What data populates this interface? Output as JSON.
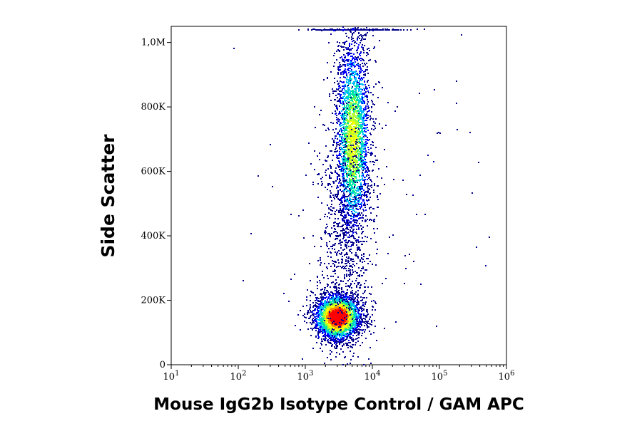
{
  "chart_data": {
    "type": "scatter",
    "title": "",
    "xlabel": "Mouse IgG2b Isotype Control / GAM APC",
    "ylabel": "Side Scatter",
    "x_scale": "log",
    "xlim": [
      10,
      1000000
    ],
    "ylim": [
      0,
      1050000
    ],
    "x_ticks": [
      {
        "value": 10,
        "base": "10",
        "exp": "1"
      },
      {
        "value": 100,
        "base": "10",
        "exp": "2"
      },
      {
        "value": 1000,
        "base": "10",
        "exp": "3"
      },
      {
        "value": 10000,
        "base": "10",
        "exp": "4"
      },
      {
        "value": 100000,
        "base": "10",
        "exp": "5"
      },
      {
        "value": 1000000,
        "base": "10",
        "exp": "6"
      }
    ],
    "y_ticks": [
      {
        "value": 0,
        "label": "0"
      },
      {
        "value": 200000,
        "label": "200K"
      },
      {
        "value": 400000,
        "label": "400K"
      },
      {
        "value": 600000,
        "label": "600K"
      },
      {
        "value": 800000,
        "label": "800K"
      },
      {
        "value": 1000000,
        "label": "1,0M"
      }
    ],
    "grid": false,
    "legend": "none",
    "colormap": [
      "#00008b",
      "#0000ff",
      "#00bfff",
      "#00e5a0",
      "#adff2f",
      "#ffff00",
      "#ff8c00",
      "#ff0000"
    ],
    "populations": [
      {
        "center_x": 3000,
        "center_y": 150000,
        "spread_log_x": 0.17,
        "spread_y": 35000,
        "relative_density": 1.0
      },
      {
        "center_x": 5000,
        "center_y": 700000,
        "spread_log_x": 0.13,
        "spread_y": 160000,
        "relative_density": 0.55
      },
      {
        "center_x": 4000,
        "center_y": 400000,
        "spread_log_x": 0.2,
        "spread_y": 250000,
        "relative_density": 0.12
      },
      {
        "center_x": 6000,
        "center_y": 1040000,
        "spread_log_x": 0.35,
        "spread_y": 5000,
        "relative_density": 0.3
      },
      {
        "center_x": 10000,
        "center_y": 500000,
        "spread_log_x": 0.9,
        "spread_y": 300000,
        "relative_density": 0.02
      }
    ]
  }
}
